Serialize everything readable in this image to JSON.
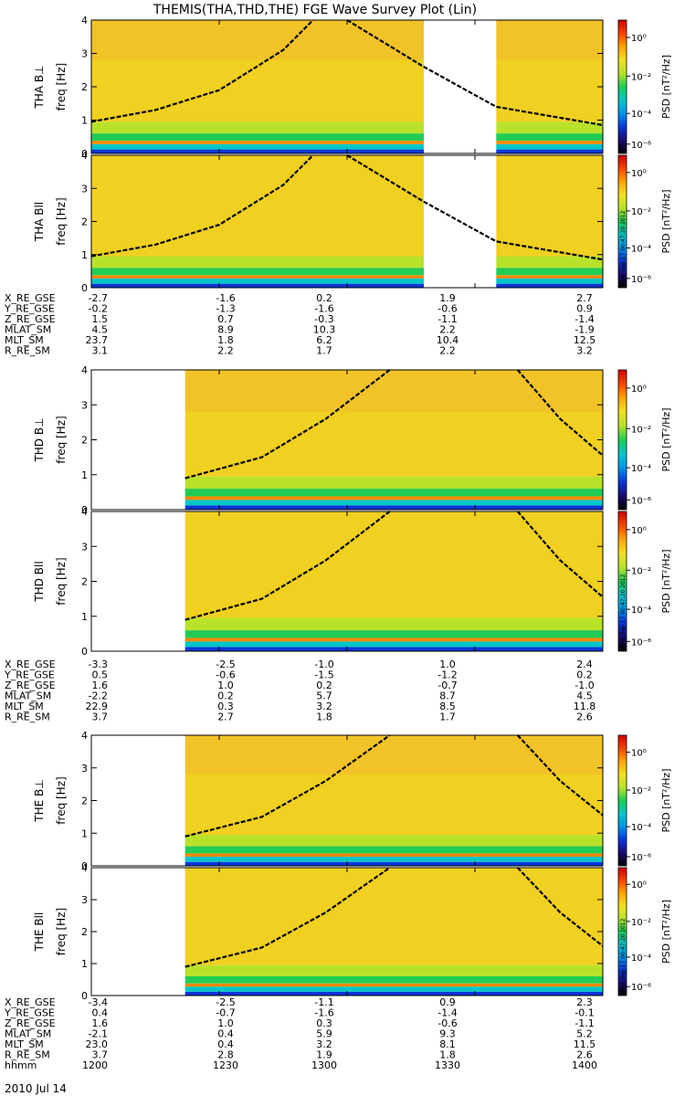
{
  "title": "THEMIS(THA,THD,THE) FGE Wave Survey Plot (Lin)",
  "colorbar": {
    "label_html": "PSD [nT²/Hz]",
    "ticks": [
      "10⁰",
      "10⁻²",
      "10⁻⁴",
      "10⁻⁶"
    ],
    "stamp": "Mon Sep 17 00:47:20 2012"
  },
  "chart_data": [
    {
      "type": "heatmap",
      "title": "THA B⊥",
      "probe": "THA",
      "ylabel": "freq [Hz]",
      "ylim": [
        0,
        4
      ],
      "ytick_labels": [
        "0",
        "1",
        "2",
        "3",
        "4"
      ],
      "zlabel": "PSD [nT²/Hz]",
      "zscale": "log",
      "data_gaps_hhmm": [
        [
          1318,
          1335
        ]
      ],
      "overlay_curve_hz": {
        "x_hhmm": [
          1200,
          1215,
          1230,
          1245,
          1252
        ],
        "y": [
          0.95,
          1.3,
          1.9,
          3.1,
          4.0
        ]
      },
      "overlay_curve_right_hz": {
        "x_hhmm": [
          1300,
          1318,
          1335,
          1400
        ],
        "y": [
          4.0,
          2.6,
          1.4,
          0.85
        ]
      },
      "colorbar_stamp": false
    },
    {
      "type": "heatmap",
      "title": "THA Bll",
      "probe": "THA",
      "ylabel": "freq [Hz]",
      "ylim": [
        0,
        4
      ],
      "ytick_labels": [
        "0",
        "1",
        "2",
        "3",
        "4"
      ],
      "zlabel": "PSD [nT²/Hz]",
      "zscale": "log",
      "data_gaps_hhmm": [
        [
          1318,
          1335
        ]
      ],
      "overlay_curve_hz": {
        "x_hhmm": [
          1200,
          1215,
          1230,
          1245,
          1252
        ],
        "y": [
          0.95,
          1.3,
          1.9,
          3.1,
          4.0
        ]
      },
      "overlay_curve_right_hz": {
        "x_hhmm": [
          1300,
          1318,
          1335,
          1400
        ],
        "y": [
          4.0,
          2.6,
          1.4,
          0.85
        ]
      },
      "colorbar_stamp": true
    },
    {
      "type": "heatmap",
      "title": "THD B⊥",
      "probe": "THD",
      "ylabel": "freq [Hz]",
      "ylim": [
        0,
        4
      ],
      "ytick_labels": [
        "0",
        "1",
        "2",
        "3",
        "4"
      ],
      "zlabel": "PSD [nT²/Hz]",
      "zscale": "log",
      "data_gaps_hhmm": [
        [
          1200,
          1222
        ]
      ],
      "overlay_curve_hz": {
        "x_hhmm": [
          1222,
          1240,
          1255,
          1310
        ],
        "y": [
          0.9,
          1.5,
          2.6,
          4.0
        ]
      },
      "overlay_curve_right_hz": {
        "x_hhmm": [
          1340,
          1350,
          1400
        ],
        "y": [
          4.0,
          2.6,
          1.55
        ]
      },
      "colorbar_stamp": false
    },
    {
      "type": "heatmap",
      "title": "THD Bll",
      "probe": "THD",
      "ylabel": "freq [Hz]",
      "ylim": [
        0,
        4
      ],
      "ytick_labels": [
        "0",
        "1",
        "2",
        "3",
        "4"
      ],
      "zlabel": "PSD [nT²/Hz]",
      "zscale": "log",
      "data_gaps_hhmm": [
        [
          1200,
          1222
        ]
      ],
      "overlay_curve_hz": {
        "x_hhmm": [
          1222,
          1240,
          1255,
          1310
        ],
        "y": [
          0.9,
          1.5,
          2.6,
          4.0
        ]
      },
      "overlay_curve_right_hz": {
        "x_hhmm": [
          1340,
          1350,
          1400
        ],
        "y": [
          4.0,
          2.6,
          1.55
        ]
      },
      "colorbar_stamp": true
    },
    {
      "type": "heatmap",
      "title": "THE B⊥",
      "probe": "THE",
      "ylabel": "freq [Hz]",
      "ylim": [
        0,
        4
      ],
      "ytick_labels": [
        "0",
        "1",
        "2",
        "3",
        "4"
      ],
      "zlabel": "PSD [nT²/Hz]",
      "zscale": "log",
      "data_gaps_hhmm": [
        [
          1200,
          1222
        ]
      ],
      "overlay_curve_hz": {
        "x_hhmm": [
          1222,
          1240,
          1255,
          1310
        ],
        "y": [
          0.9,
          1.5,
          2.6,
          4.0
        ]
      },
      "overlay_curve_right_hz": {
        "x_hhmm": [
          1340,
          1350,
          1400
        ],
        "y": [
          4.0,
          2.6,
          1.55
        ]
      },
      "colorbar_stamp": false
    },
    {
      "type": "heatmap",
      "title": "THE Bll",
      "probe": "THE",
      "ylabel": "freq [Hz]",
      "ylim": [
        0,
        4
      ],
      "ytick_labels": [
        "0",
        "1",
        "2",
        "3",
        "4"
      ],
      "zlabel": "PSD [nT²/Hz]",
      "zscale": "log",
      "data_gaps_hhmm": [
        [
          1200,
          1222
        ]
      ],
      "overlay_curve_hz": {
        "x_hhmm": [
          1222,
          1240,
          1255,
          1310
        ],
        "y": [
          0.9,
          1.5,
          2.6,
          4.0
        ]
      },
      "overlay_curve_right_hz": {
        "x_hhmm": [
          1340,
          1350,
          1400
        ],
        "y": [
          4.0,
          2.6,
          1.55
        ]
      },
      "colorbar_stamp": true
    }
  ],
  "orbit_tables": [
    {
      "probe": "THA",
      "rows": [
        {
          "label": "X_RE_GSE",
          "values": [
            "-2.7",
            "-1.6",
            "0.2",
            "1.9",
            "2.7"
          ]
        },
        {
          "label": "Y_RE_GSE",
          "values": [
            "-0.2",
            "-1.3",
            "-1.6",
            "-0.6",
            "0.9"
          ]
        },
        {
          "label": "Z_RE_GSE",
          "values": [
            "1.5",
            "0.7",
            "-0.3",
            "-1.1",
            "-1.4"
          ]
        },
        {
          "label": "MLAT_SM",
          "values": [
            "4.5",
            "8.9",
            "10.3",
            "2.2",
            "-1.9"
          ]
        },
        {
          "label": "MLT_SM",
          "values": [
            "23.7",
            "1.8",
            "6.2",
            "10.4",
            "12.5"
          ]
        },
        {
          "label": "R_RE_SM",
          "values": [
            "3.1",
            "2.2",
            "1.7",
            "2.2",
            "3.2"
          ]
        }
      ]
    },
    {
      "probe": "THD",
      "rows": [
        {
          "label": "X_RE_GSE",
          "values": [
            "-3.3",
            "-2.5",
            "-1.0",
            "1.0",
            "2.4"
          ]
        },
        {
          "label": "Y_RE_GSE",
          "values": [
            "0.5",
            "-0.6",
            "-1.5",
            "-1.2",
            "0.2"
          ]
        },
        {
          "label": "Z_RE_GSE",
          "values": [
            "1.6",
            "1.0",
            "0.2",
            "-0.7",
            "-1.0"
          ]
        },
        {
          "label": "MLAT_SM",
          "values": [
            "-2.2",
            "0.2",
            "5.7",
            "8.7",
            "4.5"
          ]
        },
        {
          "label": "MLT_SM",
          "values": [
            "22.9",
            "0.3",
            "3.2",
            "8.5",
            "11.8"
          ]
        },
        {
          "label": "R_RE_SM",
          "values": [
            "3.7",
            "2.7",
            "1.8",
            "1.7",
            "2.6"
          ]
        }
      ]
    },
    {
      "probe": "THE",
      "rows": [
        {
          "label": "X_RE_GSE",
          "values": [
            "-3.4",
            "-2.5",
            "-1.1",
            "0.9",
            "2.3"
          ]
        },
        {
          "label": "Y_RE_GSE",
          "values": [
            "0.4",
            "-0.7",
            "-1.6",
            "-1.4",
            "-0.1"
          ]
        },
        {
          "label": "Z_RE_GSE",
          "values": [
            "1.6",
            "1.0",
            "0.3",
            "-0.6",
            "-1.1"
          ]
        },
        {
          "label": "MLAT_SM",
          "values": [
            "-2.1",
            "0.4",
            "5.9",
            "9.3",
            "5.2"
          ]
        },
        {
          "label": "MLT_SM",
          "values": [
            "23.0",
            "0.4",
            "3.2",
            "8.1",
            "11.5"
          ]
        },
        {
          "label": "R_RE_SM",
          "values": [
            "3.7",
            "2.8",
            "1.9",
            "1.8",
            "2.6"
          ]
        },
        {
          "label": "hhmm",
          "values": [
            "1200",
            "1230",
            "1300",
            "1330",
            "1400"
          ]
        }
      ]
    }
  ],
  "date": "2010 Jul 14",
  "time_axis": {
    "hhmm": [
      1200,
      1230,
      1300,
      1330,
      1400
    ]
  },
  "colors": {
    "scale": [
      "#000000",
      "#1a0c6e",
      "#0a36d8",
      "#0094e6",
      "#00c6c8",
      "#22cc55",
      "#b8e22a",
      "#f0e020",
      "#ffa500",
      "#ff4400",
      "#cc0000"
    ],
    "curve": "#000000",
    "gap": "#ffffff"
  }
}
